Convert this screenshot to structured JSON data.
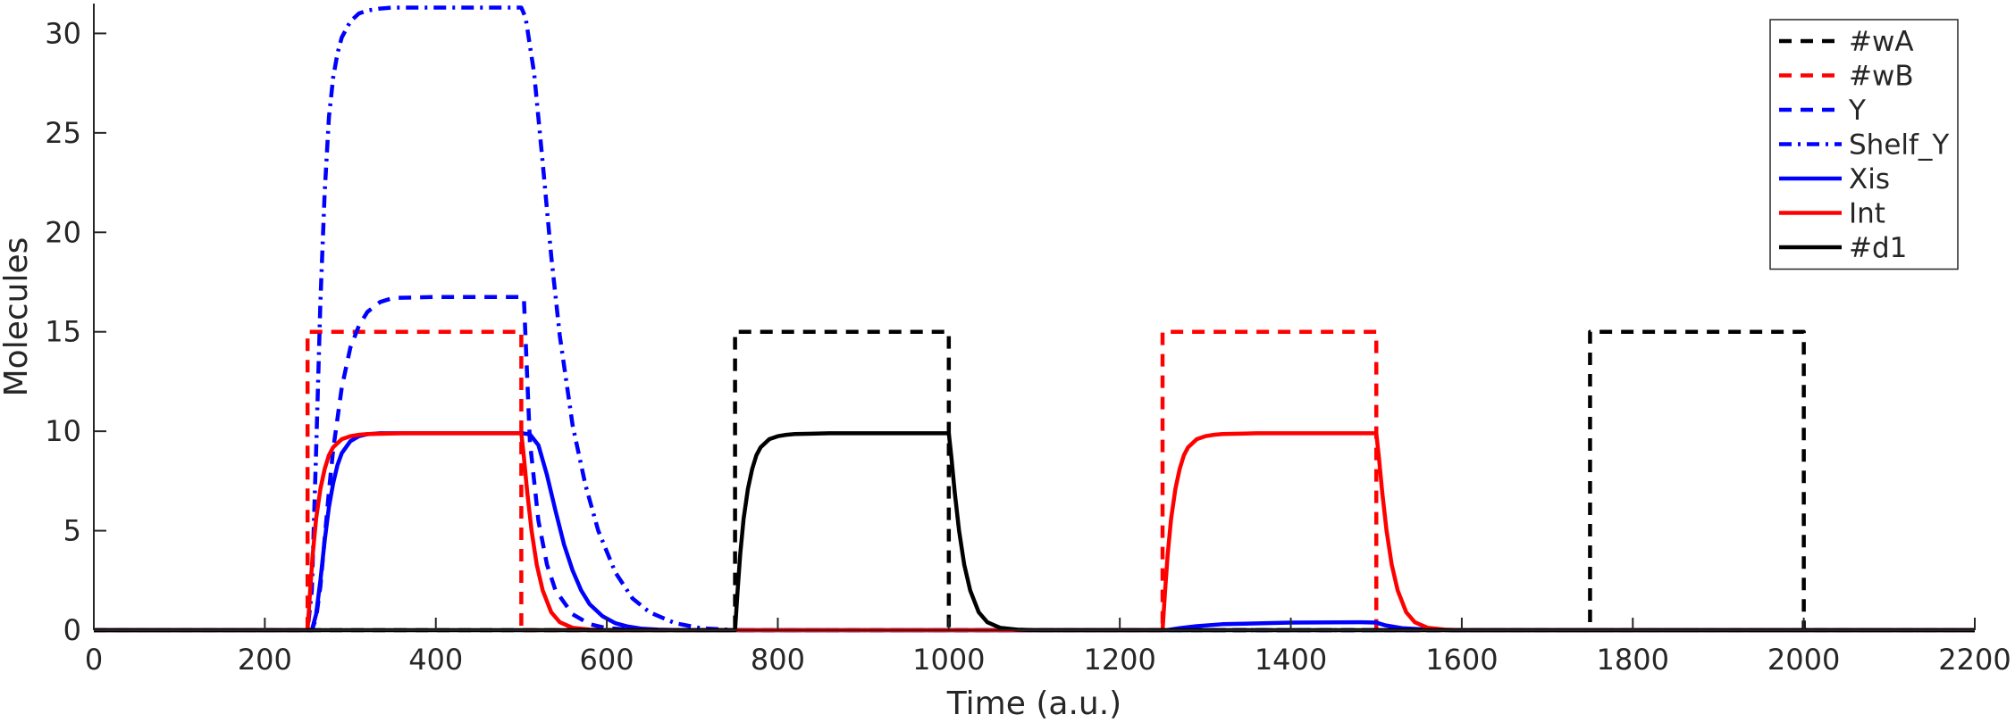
{
  "chart_data": {
    "type": "line",
    "xlabel": "Time (a.u.)",
    "ylabel": "Molecules",
    "xlim": [
      0,
      2200
    ],
    "ylim": [
      0,
      31.5
    ],
    "xticks": [
      0,
      200,
      400,
      600,
      800,
      1000,
      1200,
      1400,
      1600,
      1800,
      2000,
      2200
    ],
    "yticks": [
      0,
      5,
      10,
      15,
      20,
      25,
      30
    ],
    "grid": false,
    "legend_position": "top-right",
    "series": [
      {
        "name": "#wA",
        "color": "#000000",
        "style": "dashed",
        "x": [
          0,
          750,
          750,
          1000,
          1000,
          1750,
          1750,
          2000,
          2000,
          2200
        ],
        "y": [
          0,
          0,
          15,
          15,
          0,
          0,
          15,
          15,
          0,
          0
        ]
      },
      {
        "name": "#wB",
        "color": "#ff0000",
        "style": "dashed",
        "x": [
          0,
          250,
          250,
          500,
          500,
          1250,
          1250,
          1500,
          1500,
          2200
        ],
        "y": [
          0,
          0,
          15,
          15,
          0,
          0,
          15,
          15,
          0,
          0
        ]
      },
      {
        "name": "Y",
        "color": "#0000ff",
        "style": "dashed",
        "x": [
          0,
          255,
          260,
          265,
          270,
          275,
          280,
          290,
          300,
          310,
          320,
          335,
          350,
          400,
          450,
          500,
          503,
          510,
          520,
          530,
          540,
          560,
          580,
          600,
          620,
          650,
          700,
          2200
        ],
        "y": [
          0,
          0,
          0.6,
          2.2,
          4.6,
          7.0,
          9.1,
          12.2,
          14.2,
          15.3,
          16.0,
          16.5,
          16.7,
          16.75,
          16.75,
          16.75,
          16.7,
          9.5,
          5.5,
          3.3,
          2.0,
          0.8,
          0.3,
          0.1,
          0.05,
          0,
          0,
          0
        ]
      },
      {
        "name": "Shelf_Y",
        "color": "#0000ff",
        "style": "dashdot",
        "x": [
          0,
          250,
          255,
          260,
          265,
          270,
          275,
          280,
          285,
          290,
          300,
          310,
          320,
          335,
          350,
          400,
          450,
          500,
          505,
          515,
          525,
          535,
          545,
          560,
          575,
          590,
          610,
          630,
          650,
          680,
          710,
          740,
          760,
          2200
        ],
        "y": [
          0,
          0,
          2.0,
          9.0,
          16.5,
          22.0,
          25.8,
          27.8,
          29.0,
          29.8,
          30.6,
          31.0,
          31.15,
          31.25,
          31.3,
          31.3,
          31.3,
          31.3,
          30.8,
          28.0,
          23.5,
          18.8,
          14.8,
          10.3,
          7.3,
          5.0,
          2.9,
          1.6,
          0.9,
          0.35,
          0.1,
          0.03,
          0,
          0
        ]
      },
      {
        "name": "Xis",
        "color": "#0000ff",
        "style": "solid",
        "x": [
          0,
          255,
          260,
          265,
          270,
          275,
          280,
          285,
          290,
          300,
          310,
          320,
          335,
          350,
          400,
          450,
          500,
          510,
          520,
          530,
          540,
          550,
          560,
          570,
          580,
          595,
          610,
          625,
          640,
          660,
          690,
          720,
          1255,
          1270,
          1290,
          1320,
          1400,
          1480,
          1500,
          1510,
          1530,
          1560,
          1600,
          2200
        ],
        "y": [
          0,
          0,
          0.8,
          2.5,
          4.5,
          6.2,
          7.4,
          8.3,
          8.9,
          9.5,
          9.75,
          9.85,
          9.9,
          9.9,
          9.9,
          9.9,
          9.9,
          9.85,
          9.3,
          7.8,
          6.0,
          4.3,
          3.0,
          2.0,
          1.3,
          0.7,
          0.35,
          0.18,
          0.08,
          0.03,
          0,
          0,
          0,
          0.1,
          0.2,
          0.3,
          0.38,
          0.4,
          0.38,
          0.25,
          0.1,
          0.03,
          0,
          0
        ]
      },
      {
        "name": "Int",
        "color": "#ff0000",
        "style": "solid",
        "x": [
          0,
          250,
          253,
          256,
          260,
          265,
          270,
          275,
          280,
          290,
          300,
          310,
          320,
          340,
          360,
          400,
          450,
          500,
          503,
          507,
          512,
          518,
          525,
          535,
          545,
          560,
          580,
          600,
          1250,
          1253,
          1256,
          1260,
          1265,
          1270,
          1275,
          1280,
          1290,
          1300,
          1310,
          1320,
          1340,
          1360,
          1400,
          1450,
          1500,
          1503,
          1507,
          1512,
          1518,
          1525,
          1535,
          1545,
          1560,
          1580,
          1600,
          2200
        ],
        "y": [
          0,
          0,
          2.0,
          3.8,
          5.6,
          7.1,
          8.1,
          8.8,
          9.2,
          9.6,
          9.75,
          9.82,
          9.86,
          9.88,
          9.9,
          9.9,
          9.9,
          9.9,
          8.7,
          6.9,
          5.0,
          3.3,
          2.0,
          0.9,
          0.4,
          0.12,
          0.03,
          0,
          0,
          2.0,
          3.8,
          5.6,
          7.1,
          8.1,
          8.8,
          9.2,
          9.6,
          9.75,
          9.82,
          9.86,
          9.88,
          9.9,
          9.9,
          9.9,
          9.9,
          8.7,
          6.9,
          5.0,
          3.3,
          2.0,
          0.9,
          0.4,
          0.12,
          0.03,
          0,
          0
        ]
      },
      {
        "name": "#d1",
        "color": "#000000",
        "style": "solid",
        "x": [
          0,
          750,
          753,
          756,
          760,
          765,
          770,
          775,
          780,
          790,
          800,
          810,
          820,
          840,
          860,
          900,
          950,
          1000,
          1003,
          1007,
          1012,
          1018,
          1025,
          1035,
          1045,
          1060,
          1080,
          1100,
          2200
        ],
        "y": [
          0,
          0,
          2.0,
          3.8,
          5.6,
          7.1,
          8.1,
          8.8,
          9.2,
          9.6,
          9.75,
          9.82,
          9.86,
          9.88,
          9.9,
          9.9,
          9.9,
          9.9,
          8.7,
          6.9,
          5.0,
          3.3,
          2.0,
          0.9,
          0.4,
          0.12,
          0.03,
          0,
          0
        ]
      }
    ]
  }
}
